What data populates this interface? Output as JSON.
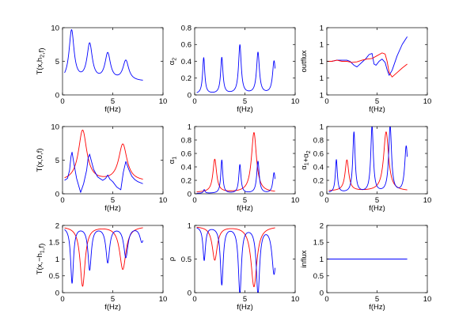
{
  "figure": {
    "colors": {
      "blue": "#0000ff",
      "red": "#ff0000",
      "axes": "#000000"
    },
    "chart_data": [
      {
        "type": "line",
        "ylabel": "T(x,h_2,f)",
        "xlabel": "f(Hz)",
        "xlim": [
          0,
          10
        ],
        "ylim": [
          0,
          10
        ],
        "xticks": [
          "0",
          "5",
          "10"
        ],
        "yticks": [
          "0",
          "5",
          "10"
        ],
        "series": [
          {
            "color": "blue",
            "kind": "peaks",
            "base": 2.0,
            "from": 0.2,
            "to": 8.0,
            "peaks": [
              {
                "f": 0.9,
                "h": 9.5,
                "w": 0.3
              },
              {
                "f": 2.7,
                "h": 7.4,
                "w": 0.32
              },
              {
                "f": 4.5,
                "h": 6.0,
                "w": 0.33
              },
              {
                "f": 6.3,
                "h": 5.0,
                "w": 0.35
              }
            ]
          }
        ]
      },
      {
        "type": "line",
        "ylabel": "α_2",
        "xlabel": "f(Hz)",
        "xlim": [
          0,
          10
        ],
        "ylim": [
          0,
          0.8
        ],
        "xticks": [
          "0",
          "5",
          "10"
        ],
        "yticks": [
          "0",
          "0.2",
          "0.4",
          "0.6",
          "0.8"
        ],
        "series": [
          {
            "color": "blue",
            "kind": "peaks",
            "base": 0.01,
            "from": 0.2,
            "to": 8.0,
            "peaks": [
              {
                "f": 0.9,
                "h": 0.44,
                "w": 0.13
              },
              {
                "f": 2.7,
                "h": 0.44,
                "w": 0.14
              },
              {
                "f": 4.5,
                "h": 0.59,
                "w": 0.16
              },
              {
                "f": 6.3,
                "h": 0.5,
                "w": 0.17
              },
              {
                "f": 7.9,
                "h": 0.4,
                "w": 0.18
              }
            ]
          }
        ]
      },
      {
        "type": "line",
        "ylabel": "outflux",
        "xlabel": "f(Hz)",
        "xlim": [
          0,
          10
        ],
        "ylim": [
          0.94,
          1.06
        ],
        "xticks": [
          "0",
          "5",
          "10"
        ],
        "yticks": [
          "1",
          "1",
          "1",
          "1",
          "1"
        ],
        "series": [
          {
            "color": "blue",
            "kind": "xy",
            "x": [
              0,
              0.5,
              1.0,
              1.5,
              2.0,
              2.3,
              2.7,
              3.0,
              3.3,
              3.6,
              3.9,
              4.2,
              4.5,
              4.7,
              4.9,
              5.2,
              5.5,
              5.8,
              6.0,
              6.2,
              6.5,
              7.0,
              7.5,
              8.0
            ],
            "y": [
              1.0,
              1.0,
              1.002,
              1.002,
              1.002,
              1.0,
              0.993,
              0.99,
              0.995,
              1.0,
              1.005,
              1.012,
              1.014,
              0.995,
              0.993,
              1.0,
              1.004,
              0.998,
              0.985,
              0.975,
              0.984,
              1.01,
              1.03,
              1.044
            ]
          },
          {
            "color": "red",
            "kind": "xy",
            "x": [
              0,
              0.5,
              1.0,
              1.5,
              2.0,
              2.5,
              3.0,
              3.5,
              4.0,
              4.5,
              5.0,
              5.5,
              5.8,
              6.0,
              6.2,
              6.5,
              7.0,
              7.5,
              8.0
            ],
            "y": [
              1.0,
              1.0,
              1.002,
              1.0,
              1.0,
              0.998,
              0.999,
              1.002,
              1.004,
              1.005,
              1.01,
              1.015,
              1.013,
              1.0,
              0.98,
              0.972,
              0.98,
              0.988,
              0.995
            ]
          }
        ]
      },
      {
        "type": "line",
        "ylabel": "T(x,0,f)",
        "xlabel": "f(Hz)",
        "xlim": [
          0,
          10
        ],
        "ylim": [
          0,
          10
        ],
        "xticks": [
          "0",
          "5",
          "10"
        ],
        "yticks": [
          "0",
          "5",
          "10"
        ],
        "series": [
          {
            "color": "red",
            "kind": "peaks",
            "base": 1.8,
            "from": 0.2,
            "to": 8.0,
            "peaks": [
              {
                "f": 2.0,
                "h": 9.4,
                "w": 0.5
              },
              {
                "f": 6.0,
                "h": 7.3,
                "w": 0.5
              }
            ]
          },
          {
            "color": "blue",
            "kind": "xy",
            "x": [
              0.2,
              0.5,
              0.7,
              0.85,
              0.95,
              1.1,
              1.4,
              1.8,
              2.1,
              2.4,
              2.55,
              2.7,
              2.85,
              3.1,
              3.5,
              4.0,
              4.3,
              4.5,
              4.7,
              5.0,
              5.4,
              5.8,
              6.05,
              6.3,
              6.6,
              6.9,
              7.2,
              7.5,
              8.0
            ],
            "y": [
              2.0,
              2.3,
              3.5,
              5.6,
              6.2,
              4.8,
              2.3,
              0.2,
              1.5,
              3.5,
              5.3,
              5.9,
              5.0,
              3.6,
              2.5,
              2.0,
              2.3,
              2.8,
              2.2,
              1.8,
              1.0,
              0.6,
              3.2,
              4.8,
              3.6,
              2.6,
              2.1,
              1.8,
              1.5
            ]
          }
        ]
      },
      {
        "type": "line",
        "ylabel": "α_1",
        "xlabel": "f(Hz)",
        "xlim": [
          0,
          10
        ],
        "ylim": [
          0,
          1
        ],
        "xticks": [
          "0",
          "5",
          "10"
        ],
        "yticks": [
          "0",
          "0.2",
          "0.4",
          "0.6",
          "0.8",
          "1"
        ],
        "series": [
          {
            "color": "red",
            "kind": "peaks",
            "base": 0.02,
            "from": 0.2,
            "to": 8.0,
            "peaks": [
              {
                "f": 2.0,
                "h": 0.51,
                "w": 0.22
              },
              {
                "f": 5.9,
                "h": 0.91,
                "w": 0.3
              }
            ]
          },
          {
            "color": "blue",
            "kind": "peaks",
            "base": 0.005,
            "from": 0.2,
            "to": 8.0,
            "peaks": [
              {
                "f": 0.95,
                "h": 0.06,
                "w": 0.1
              },
              {
                "f": 2.7,
                "h": 0.5,
                "w": 0.12
              },
              {
                "f": 4.5,
                "h": 0.43,
                "w": 0.13
              },
              {
                "f": 6.3,
                "h": 0.48,
                "w": 0.15
              },
              {
                "f": 7.9,
                "h": 0.31,
                "w": 0.15
              }
            ]
          }
        ]
      },
      {
        "type": "line",
        "ylabel": "α_1+α_2",
        "xlabel": "f(Hz)",
        "xlim": [
          0,
          10
        ],
        "ylim": [
          0,
          1
        ],
        "xticks": [
          "0",
          "5",
          "10"
        ],
        "yticks": [
          "0",
          "0.2",
          "0.4",
          "0.6",
          "0.8",
          "1"
        ],
        "series": [
          {
            "color": "red",
            "kind": "peaks",
            "base": 0.04,
            "from": 0.2,
            "to": 8.0,
            "peaks": [
              {
                "f": 2.0,
                "h": 0.5,
                "w": 0.22
              },
              {
                "f": 5.9,
                "h": 0.92,
                "w": 0.3
              }
            ]
          },
          {
            "color": "blue",
            "kind": "peaks",
            "base": 0.01,
            "from": 0.2,
            "to": 8.0,
            "peaks": [
              {
                "f": 0.95,
                "h": 0.5,
                "w": 0.12
              },
              {
                "f": 2.7,
                "h": 0.91,
                "w": 0.14
              },
              {
                "f": 4.5,
                "h": 1.0,
                "w": 0.15
              },
              {
                "f": 6.3,
                "h": 1.0,
                "w": 0.17
              },
              {
                "f": 7.9,
                "h": 0.7,
                "w": 0.18
              }
            ]
          }
        ]
      },
      {
        "type": "line",
        "ylabel": "T(x,−h_1,f)",
        "xlabel": "f(Hz)",
        "xlim": [
          0,
          10
        ],
        "ylim": [
          0,
          2
        ],
        "xticks": [
          "0",
          "5",
          "10"
        ],
        "yticks": [
          "0",
          "0.5",
          "1",
          "1.5",
          "2"
        ],
        "series": [
          {
            "color": "red",
            "kind": "dips",
            "base": 1.98,
            "from": 0.2,
            "to": 8.0,
            "dips": [
              {
                "f": 2.0,
                "d": 1.78,
                "w": 0.3
              },
              {
                "f": 6.0,
                "d": 1.28,
                "w": 0.38
              }
            ]
          },
          {
            "color": "blue",
            "kind": "dips",
            "base": 1.97,
            "from": 0.2,
            "to": 8.0,
            "dips": [
              {
                "f": 0.95,
                "d": 1.67,
                "w": 0.17
              },
              {
                "f": 2.7,
                "d": 1.27,
                "w": 0.2
              },
              {
                "f": 4.5,
                "d": 1.05,
                "w": 0.22
              },
              {
                "f": 6.3,
                "d": 0.9,
                "w": 0.25
              },
              {
                "f": 7.9,
                "d": 0.45,
                "w": 0.25
              }
            ]
          }
        ]
      },
      {
        "type": "line",
        "ylabel": "ρ",
        "xlabel": "f(Hz)",
        "xlim": [
          0,
          10
        ],
        "ylim": [
          0,
          1
        ],
        "xticks": [
          "0",
          "5",
          "10"
        ],
        "yticks": [
          "0",
          "0.5",
          "1"
        ],
        "series": [
          {
            "color": "red",
            "kind": "dips",
            "base": 0.99,
            "from": 0.2,
            "to": 8.0,
            "dips": [
              {
                "f": 2.0,
                "d": 0.5,
                "w": 0.3
              },
              {
                "f": 5.9,
                "d": 0.9,
                "w": 0.35
              }
            ]
          },
          {
            "color": "blue",
            "kind": "dips",
            "base": 0.99,
            "from": 0.2,
            "to": 8.0,
            "dips": [
              {
                "f": 0.95,
                "d": 0.5,
                "w": 0.15
              },
              {
                "f": 2.7,
                "d": 0.86,
                "w": 0.17
              },
              {
                "f": 4.5,
                "d": 0.99,
                "w": 0.18
              },
              {
                "f": 6.3,
                "d": 0.99,
                "w": 0.2
              },
              {
                "f": 7.9,
                "d": 0.7,
                "w": 0.25
              }
            ]
          }
        ]
      },
      {
        "type": "line",
        "ylabel": "influx",
        "xlabel": "f(Hz)",
        "xlim": [
          0,
          10
        ],
        "ylim": [
          0,
          2
        ],
        "xticks": [
          "0",
          "5",
          "10"
        ],
        "yticks": [
          "0",
          "0.5",
          "1",
          "1.5",
          "2"
        ],
        "series": [
          {
            "color": "blue",
            "kind": "xy",
            "x": [
              0,
              8
            ],
            "y": [
              1,
              1
            ]
          }
        ]
      }
    ]
  }
}
